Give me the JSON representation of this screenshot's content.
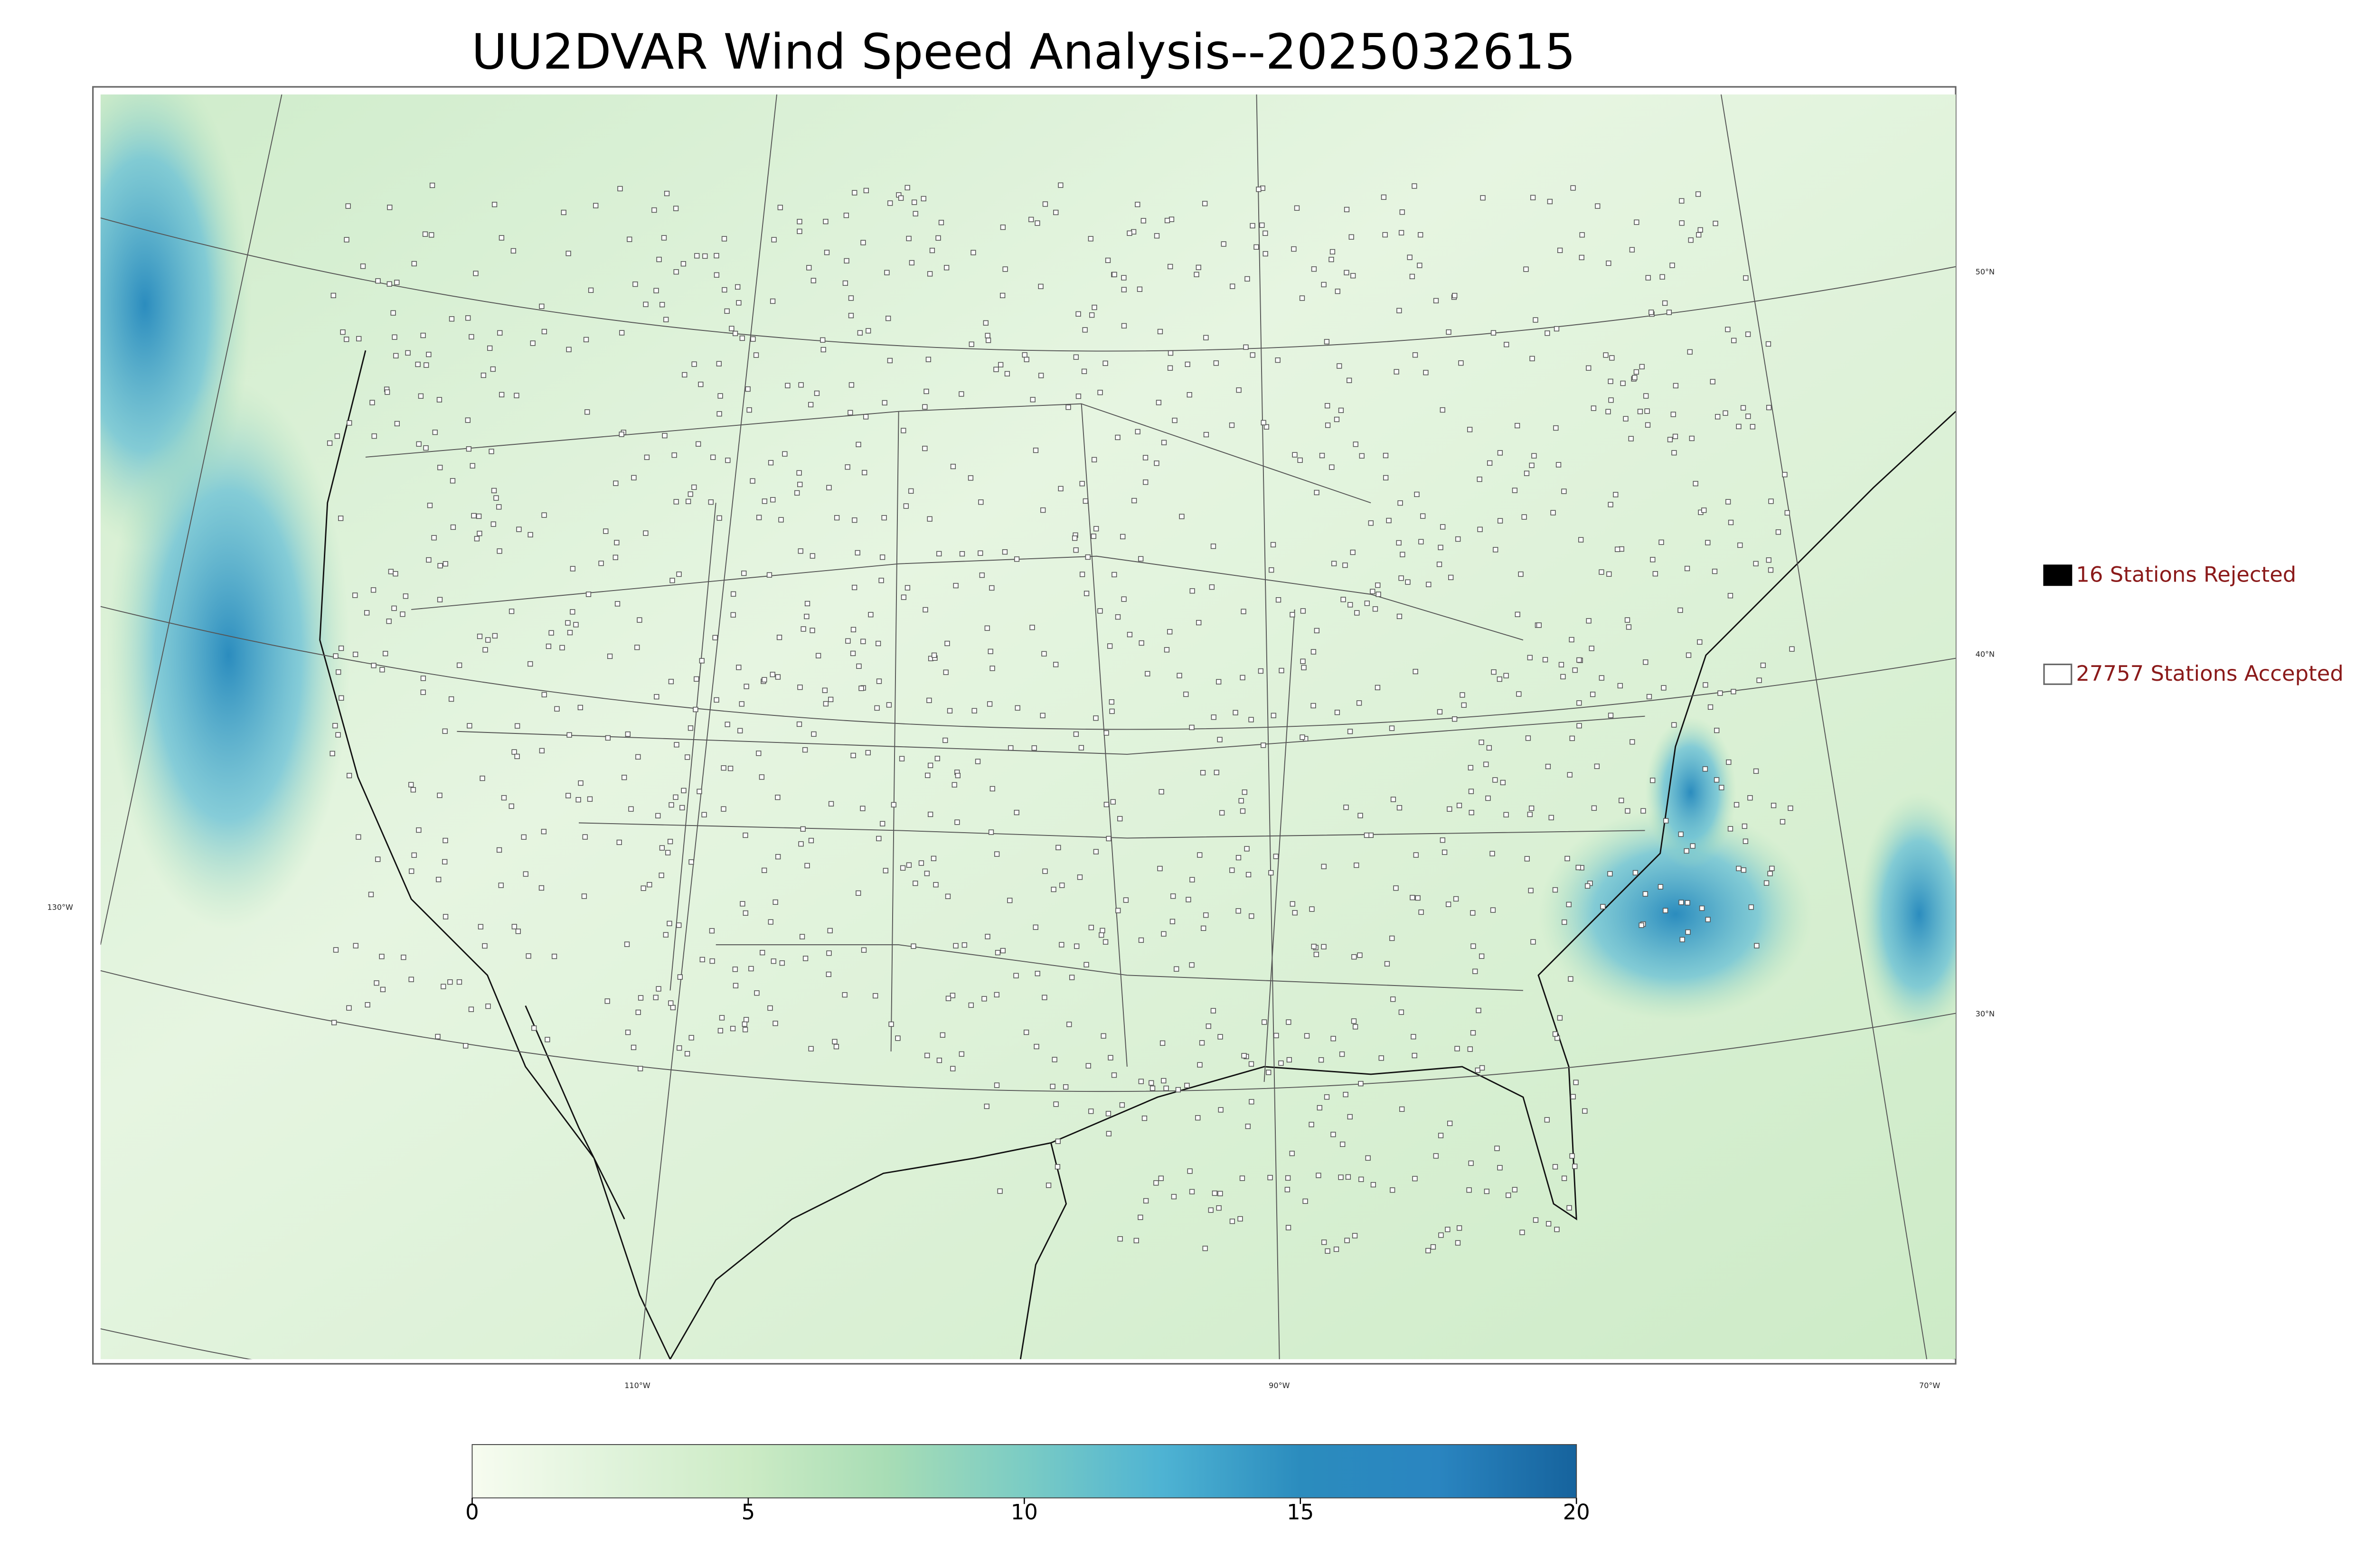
{
  "title": "UU2DVAR Wind Speed Analysis--2025032615",
  "legend": [
    {
      "label": "16 Stations Rejected",
      "marker": "filled"
    },
    {
      "label": "27757 Stations Accepted",
      "marker": "open"
    }
  ],
  "graticule": {
    "latitude_labels": [
      "50°N",
      "40°N",
      "30°N"
    ],
    "longitude_labels": [
      "130°W",
      "110°W",
      "90°W",
      "70°W"
    ]
  },
  "colorbar": {
    "lim": [
      0,
      20
    ],
    "ticks": [
      0,
      5,
      10,
      15,
      20
    ],
    "colors": [
      "#f7fcf0",
      "#e0f3db",
      "#ccebc5",
      "#a8ddb5",
      "#7bccc4",
      "#4eb3d3",
      "#2b8cbe",
      "#2a85c0",
      "#16639d"
    ]
  }
}
